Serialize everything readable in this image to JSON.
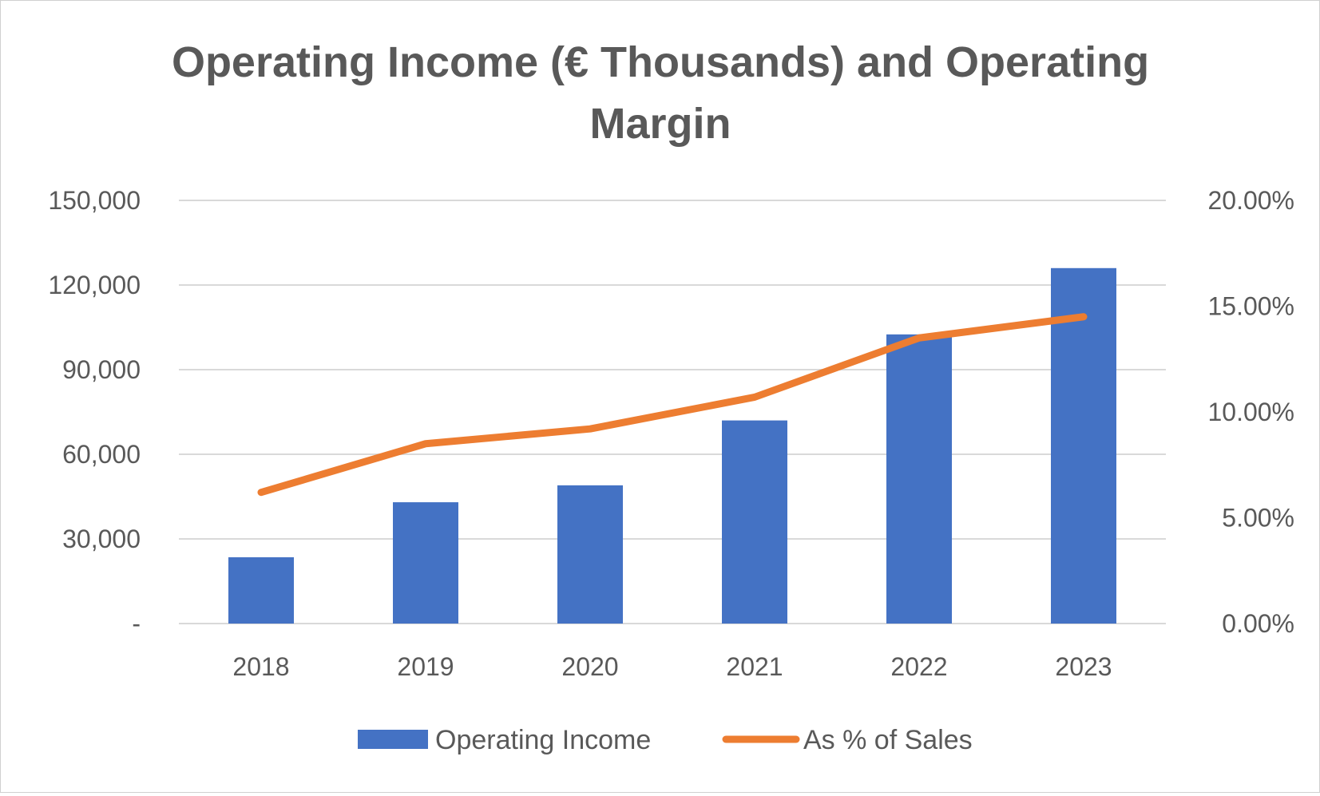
{
  "chart_data": {
    "type": "bar",
    "title_lines": [
      "Operating Income (€ Thousands) and Operating",
      "Margin"
    ],
    "categories": [
      "2018",
      "2019",
      "2020",
      "2021",
      "2022",
      "2023"
    ],
    "series": [
      {
        "name": "Operating Income",
        "type": "bar",
        "axis": "left",
        "color": "#4472C4",
        "values": [
          23500,
          43000,
          49000,
          72000,
          102500,
          126000
        ]
      },
      {
        "name": "As % of Sales",
        "type": "line",
        "axis": "right",
        "color": "#ED7D31",
        "values": [
          6.2,
          8.5,
          9.2,
          10.7,
          13.5,
          14.5
        ]
      }
    ],
    "y_left": {
      "min": 0,
      "max": 150000,
      "ticks": [
        0,
        30000,
        60000,
        90000,
        120000,
        150000
      ],
      "tick_labels": [
        "-",
        "30,000",
        "60,000",
        "90,000",
        "120,000",
        "150,000"
      ]
    },
    "y_right": {
      "min": 0,
      "max": 20,
      "ticks": [
        0,
        5,
        10,
        15,
        20
      ],
      "tick_labels": [
        "0.00%",
        "5.00%",
        "10.00%",
        "15.00%",
        "20.00%"
      ]
    },
    "grid": true,
    "legend_position": "bottom"
  }
}
